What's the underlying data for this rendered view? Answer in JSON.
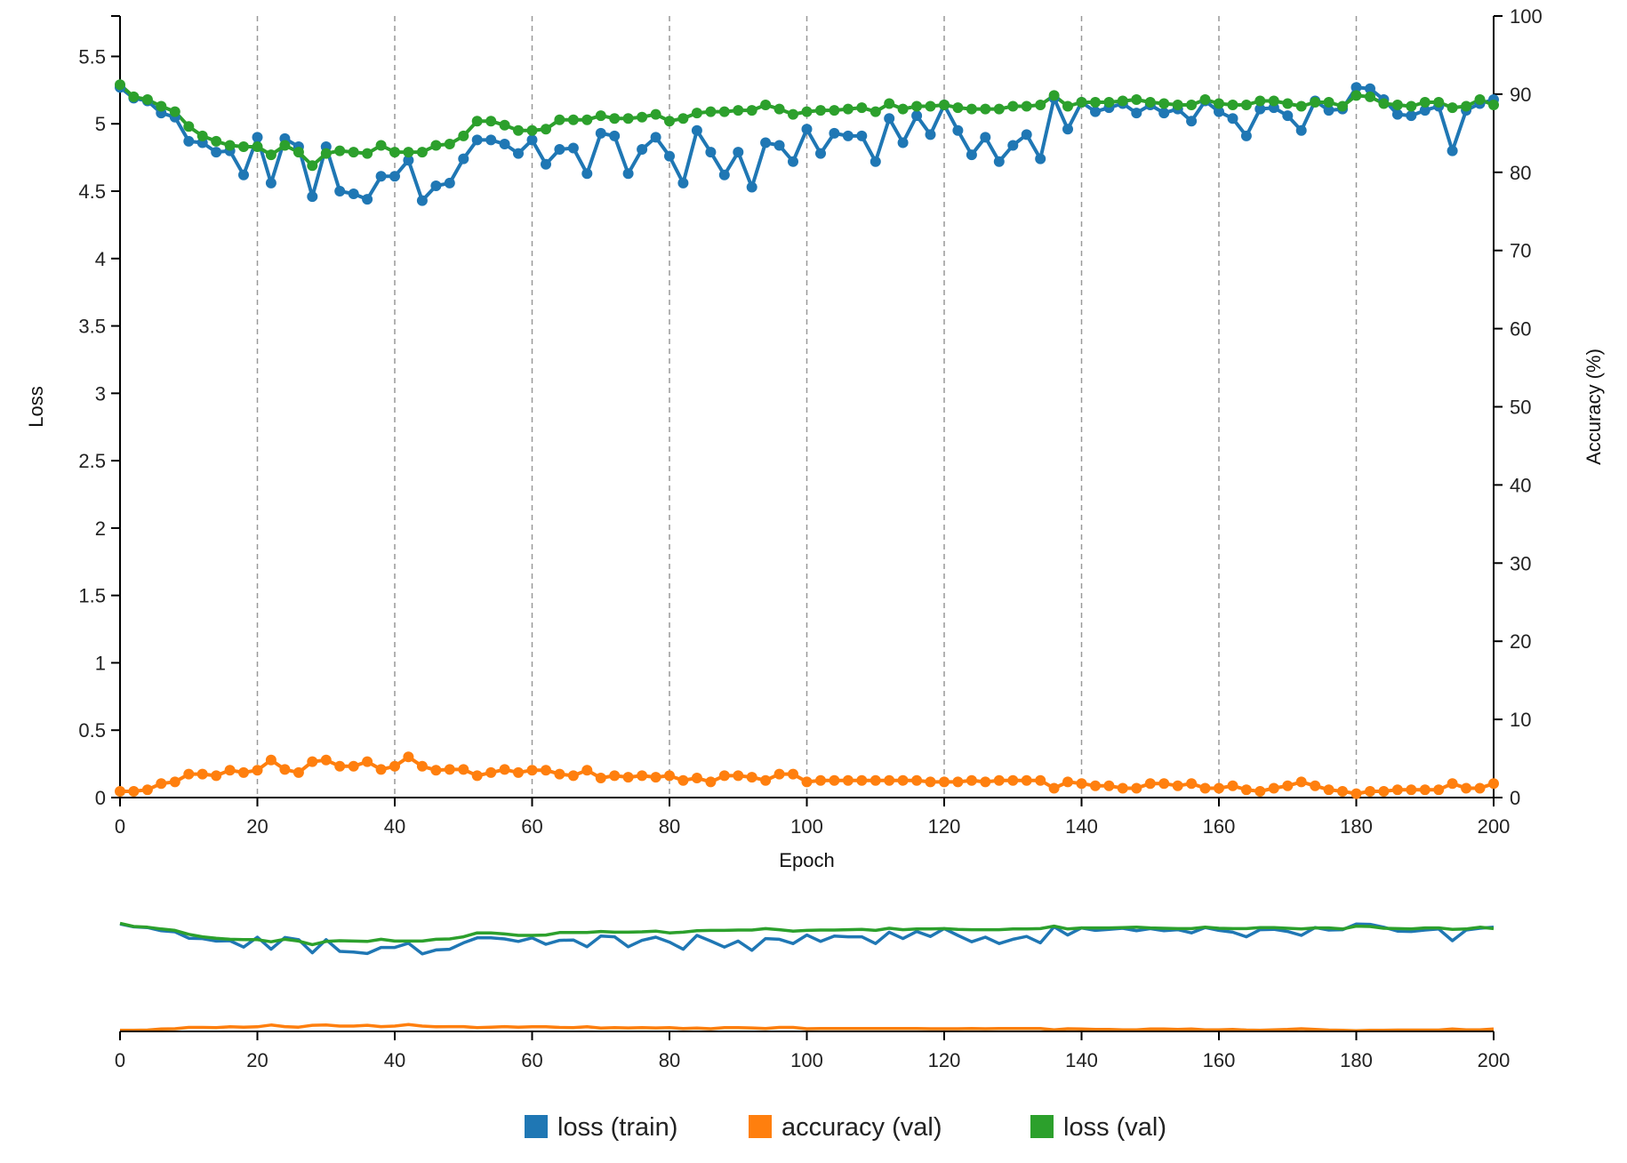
{
  "chart_data": {
    "type": "line",
    "x_axis": {
      "label": "Epoch",
      "range": [
        0,
        200
      ],
      "ticks": [
        0,
        20,
        40,
        60,
        80,
        100,
        120,
        140,
        160,
        180,
        200
      ]
    },
    "y_left": {
      "label": "Loss",
      "range": [
        0,
        5.8
      ],
      "ticks": [
        "0",
        "0.5",
        "1",
        "1.5",
        "2",
        "2.5",
        "3",
        "3.5",
        "4",
        "4.5",
        "5",
        "5.5"
      ]
    },
    "y_right": {
      "label": "Accuracy (%)",
      "range": [
        0,
        100
      ],
      "ticks": [
        "0",
        "10",
        "20",
        "30",
        "40",
        "50",
        "60",
        "70",
        "80",
        "90",
        "100"
      ]
    },
    "grid": "vertical dashed at x ticks",
    "x": [
      0,
      2,
      4,
      6,
      8,
      10,
      12,
      14,
      16,
      18,
      20,
      22,
      24,
      26,
      28,
      30,
      32,
      34,
      36,
      38,
      40,
      42,
      44,
      46,
      48,
      50,
      52,
      54,
      56,
      58,
      60,
      62,
      64,
      66,
      68,
      70,
      72,
      74,
      76,
      78,
      80,
      82,
      84,
      86,
      88,
      90,
      92,
      94,
      96,
      98,
      100,
      102,
      104,
      106,
      108,
      110,
      112,
      114,
      116,
      118,
      120,
      122,
      124,
      126,
      128,
      130,
      132,
      134,
      136,
      138,
      140,
      142,
      144,
      146,
      148,
      150,
      152,
      154,
      156,
      158,
      160,
      162,
      164,
      166,
      168,
      170,
      172,
      174,
      176,
      178,
      180,
      182,
      184,
      186,
      188,
      190,
      192,
      194,
      196,
      198,
      200
    ],
    "series": [
      {
        "name": "loss (train)",
        "axis": "left",
        "color": "#1f77b4",
        "values": [
          5.27,
          5.19,
          5.17,
          5.08,
          5.05,
          4.87,
          4.86,
          4.79,
          4.8,
          4.62,
          4.9,
          4.56,
          4.89,
          4.83,
          4.46,
          4.83,
          4.5,
          4.48,
          4.44,
          4.61,
          4.61,
          4.73,
          4.43,
          4.54,
          4.56,
          4.74,
          4.88,
          4.88,
          4.85,
          4.78,
          4.88,
          4.7,
          4.81,
          4.82,
          4.63,
          4.93,
          4.91,
          4.63,
          4.81,
          4.9,
          4.76,
          4.56,
          4.95,
          4.79,
          4.62,
          4.79,
          4.53,
          4.86,
          4.84,
          4.72,
          4.96,
          4.78,
          4.93,
          4.91,
          4.91,
          4.72,
          5.04,
          4.86,
          5.06,
          4.92,
          5.14,
          4.95,
          4.77,
          4.9,
          4.72,
          4.84,
          4.92,
          4.74,
          5.19,
          4.96,
          5.16,
          5.09,
          5.12,
          5.15,
          5.08,
          5.14,
          5.08,
          5.11,
          5.02,
          5.17,
          5.09,
          5.04,
          4.91,
          5.11,
          5.12,
          5.06,
          4.95,
          5.17,
          5.1,
          5.11,
          5.27,
          5.26,
          5.18,
          5.07,
          5.06,
          5.1,
          5.13,
          4.8,
          5.1,
          5.15,
          5.18
        ]
      },
      {
        "name": "accuracy (val)",
        "axis": "right",
        "color": "#ff7f0e",
        "values": [
          0.8,
          0.8,
          1.0,
          1.8,
          2.0,
          3.0,
          3.0,
          2.8,
          3.5,
          3.2,
          3.5,
          4.8,
          3.6,
          3.2,
          4.6,
          4.8,
          4.0,
          4.0,
          4.6,
          3.6,
          4.0,
          5.2,
          4.0,
          3.5,
          3.6,
          3.6,
          2.8,
          3.2,
          3.6,
          3.2,
          3.5,
          3.5,
          3.0,
          2.8,
          3.5,
          2.5,
          2.8,
          2.6,
          2.8,
          2.6,
          2.8,
          2.2,
          2.5,
          2.0,
          2.8,
          2.8,
          2.6,
          2.2,
          3.0,
          3.0,
          2.0,
          2.2,
          2.2,
          2.2,
          2.2,
          2.2,
          2.2,
          2.2,
          2.2,
          2.0,
          2.0,
          2.0,
          2.2,
          2.0,
          2.2,
          2.2,
          2.2,
          2.2,
          1.2,
          2.0,
          1.8,
          1.5,
          1.5,
          1.2,
          1.2,
          1.8,
          1.8,
          1.5,
          1.8,
          1.2,
          1.2,
          1.5,
          1.0,
          0.8,
          1.2,
          1.5,
          2.0,
          1.5,
          1.0,
          0.8,
          0.5,
          0.8,
          0.8,
          1.0,
          1.0,
          1.0,
          1.0,
          1.8,
          1.2,
          1.2,
          1.8
        ]
      },
      {
        "name": "loss (val)",
        "axis": "left",
        "color": "#2ca02c",
        "values": [
          5.29,
          5.2,
          5.18,
          5.13,
          5.09,
          4.98,
          4.91,
          4.87,
          4.84,
          4.83,
          4.83,
          4.77,
          4.84,
          4.79,
          4.69,
          4.78,
          4.8,
          4.79,
          4.78,
          4.84,
          4.79,
          4.79,
          4.79,
          4.84,
          4.85,
          4.91,
          5.02,
          5.02,
          4.99,
          4.95,
          4.95,
          4.96,
          5.03,
          5.03,
          5.03,
          5.06,
          5.04,
          5.04,
          5.05,
          5.07,
          5.02,
          5.04,
          5.08,
          5.09,
          5.09,
          5.1,
          5.1,
          5.14,
          5.11,
          5.07,
          5.09,
          5.1,
          5.1,
          5.11,
          5.12,
          5.09,
          5.15,
          5.11,
          5.13,
          5.13,
          5.14,
          5.12,
          5.11,
          5.11,
          5.11,
          5.13,
          5.13,
          5.14,
          5.21,
          5.13,
          5.16,
          5.16,
          5.16,
          5.17,
          5.18,
          5.16,
          5.15,
          5.14,
          5.14,
          5.18,
          5.15,
          5.14,
          5.14,
          5.17,
          5.17,
          5.15,
          5.13,
          5.16,
          5.16,
          5.13,
          5.21,
          5.2,
          5.15,
          5.14,
          5.13,
          5.16,
          5.16,
          5.12,
          5.13,
          5.18,
          5.14
        ]
      }
    ],
    "overview": {
      "x_ticks": [
        0,
        20,
        40,
        60,
        80,
        100,
        120,
        140,
        160,
        180,
        200
      ]
    },
    "legend": {
      "placement": "bottom-center",
      "entries": [
        "loss (train)",
        "accuracy (val)",
        "loss (val)"
      ]
    }
  }
}
